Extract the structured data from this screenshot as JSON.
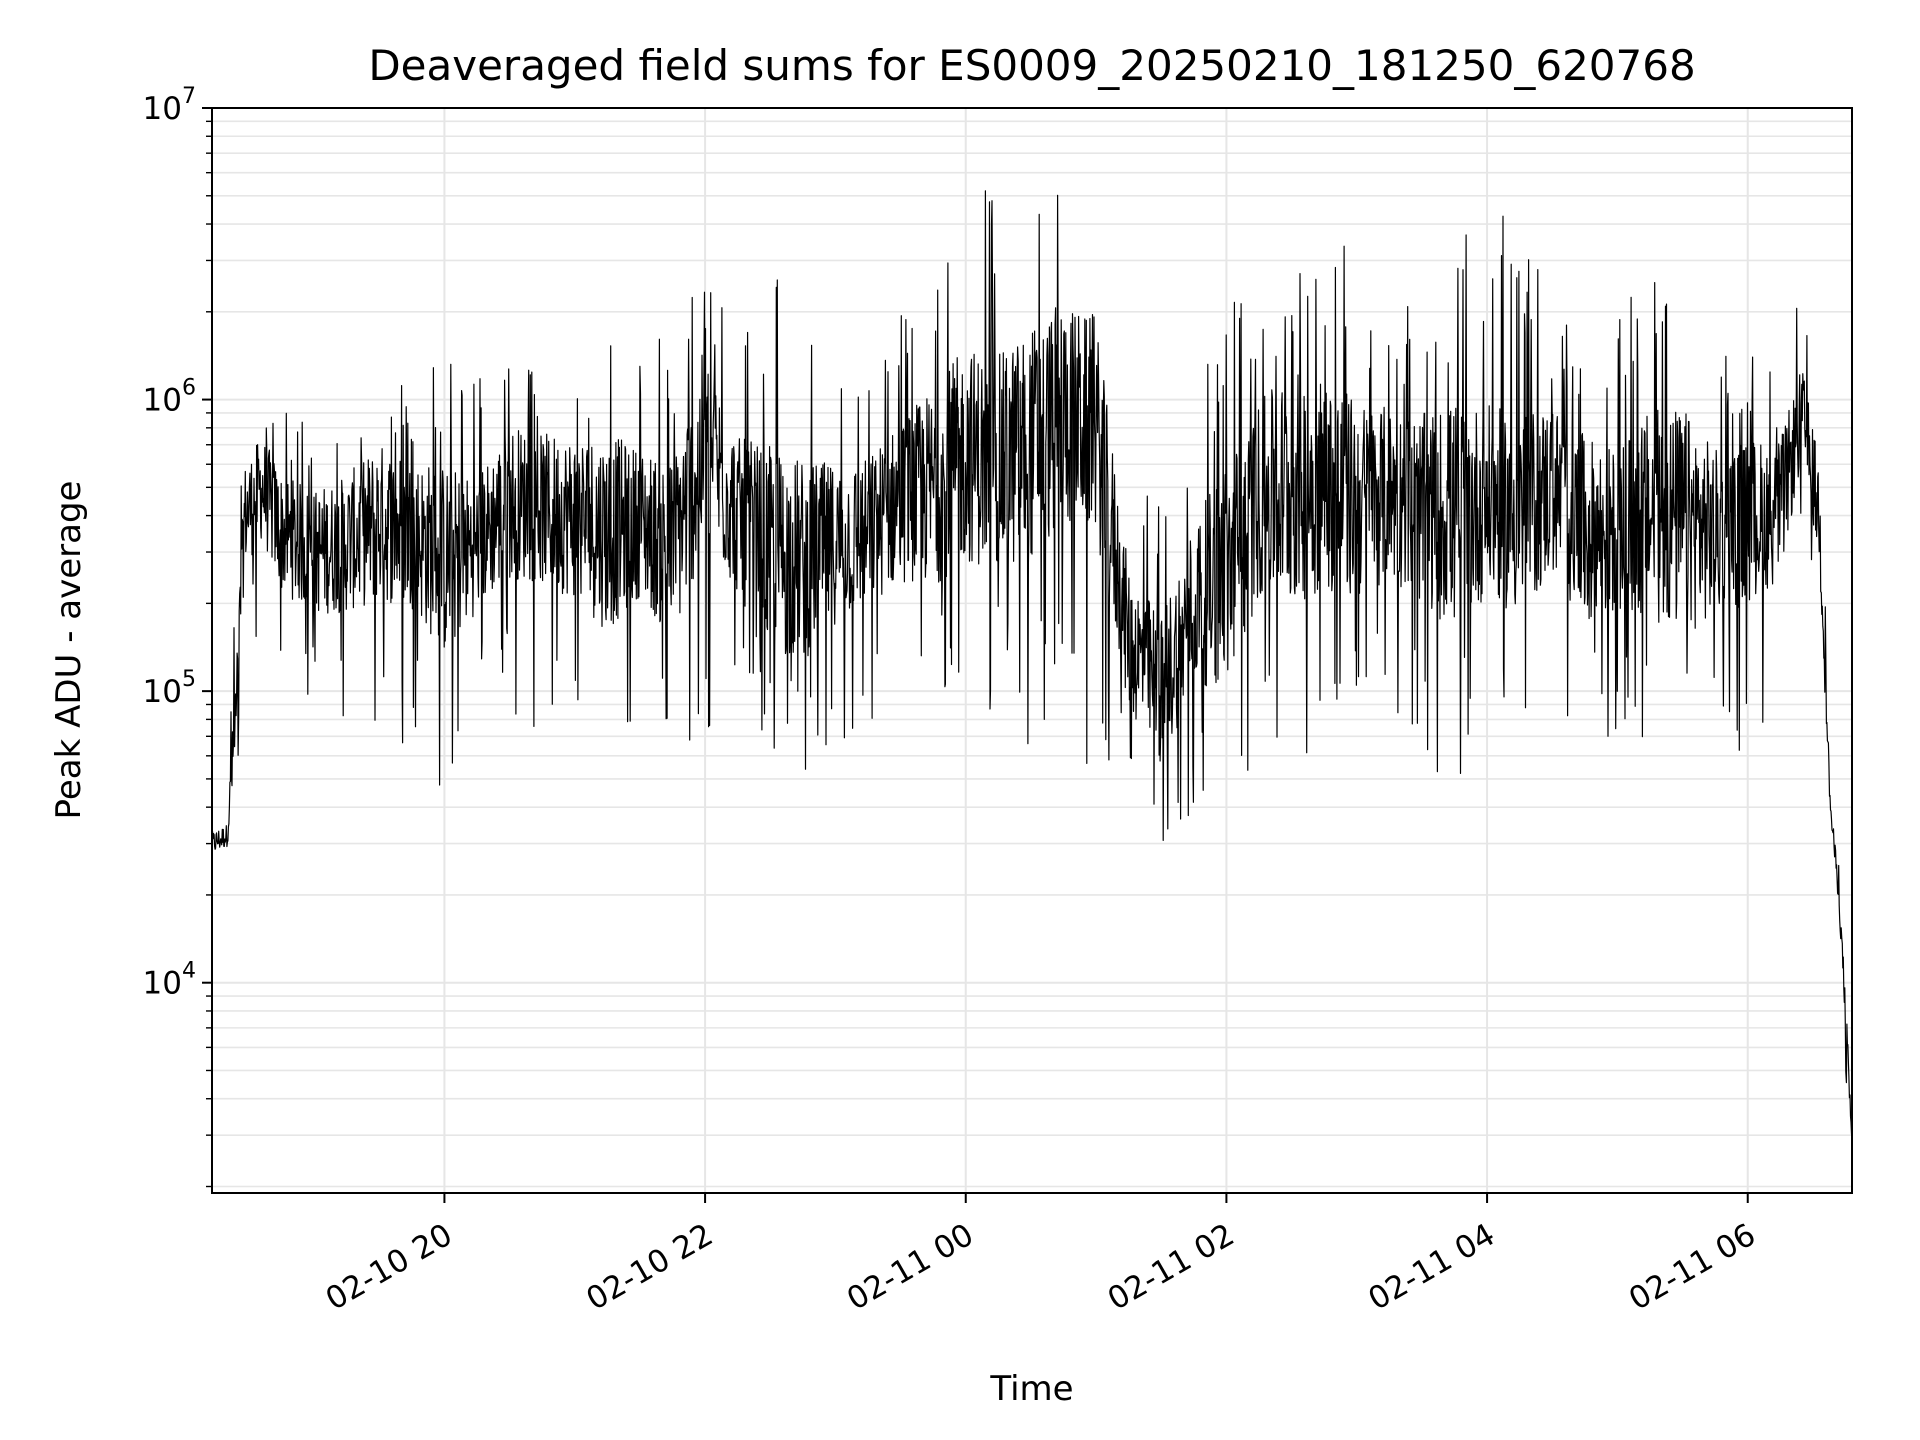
{
  "chart_data": {
    "type": "line",
    "title": "Deaveraged field sums for ES0009_20250210_181250_620768",
    "xlabel": "Time",
    "ylabel": "Peak ADU - average",
    "yscale": "log",
    "ylim": [
      1900,
      10000000
    ],
    "xlim": [
      "2025-02-10 18:13",
      "2025-02-11 06:48"
    ],
    "x_ticks": [
      {
        "t": "2025-02-10 20:00",
        "label": "02-10 20"
      },
      {
        "t": "2025-02-10 22:00",
        "label": "02-10 22"
      },
      {
        "t": "2025-02-11 00:00",
        "label": "02-11 00"
      },
      {
        "t": "2025-02-11 02:00",
        "label": "02-11 02"
      },
      {
        "t": "2025-02-11 04:00",
        "label": "02-11 04"
      },
      {
        "t": "2025-02-11 06:00",
        "label": "02-11 06"
      }
    ],
    "y_ticks": [
      {
        "value": 10000,
        "base": "10",
        "exp": "4"
      },
      {
        "value": 100000,
        "base": "10",
        "exp": "5"
      },
      {
        "value": 1000000,
        "base": "10",
        "exp": "6"
      },
      {
        "value": 10000000,
        "base": "10",
        "exp": "7"
      }
    ],
    "grid": true,
    "line_color": "#000000",
    "grid_color": "#e6e6e6",
    "series": [
      {
        "x": [
          "2025-02-10 18:13",
          "2025-02-10 18:20",
          "2025-02-10 18:24",
          "2025-02-10 18:28",
          "2025-02-10 18:36",
          "2025-02-10 18:45",
          "2025-02-10 19:00",
          "2025-02-10 19:15",
          "2025-02-10 19:30",
          "2025-02-10 19:45",
          "2025-02-10 20:00",
          "2025-02-10 20:15",
          "2025-02-10 20:30",
          "2025-02-10 20:45",
          "2025-02-10 21:00",
          "2025-02-10 21:15",
          "2025-02-10 21:30",
          "2025-02-10 21:45",
          "2025-02-10 22:00",
          "2025-02-10 22:15",
          "2025-02-10 22:30",
          "2025-02-10 22:45",
          "2025-02-10 23:00",
          "2025-02-10 23:15",
          "2025-02-10 23:30",
          "2025-02-10 23:45",
          "2025-02-11 00:00",
          "2025-02-11 00:15",
          "2025-02-11 00:30",
          "2025-02-11 00:45",
          "2025-02-11 01:00",
          "2025-02-11 01:15",
          "2025-02-11 01:30",
          "2025-02-11 01:45",
          "2025-02-11 02:00",
          "2025-02-11 02:15",
          "2025-02-11 02:30",
          "2025-02-11 02:45",
          "2025-02-11 03:00",
          "2025-02-11 03:15",
          "2025-02-11 03:30",
          "2025-02-11 03:45",
          "2025-02-11 04:00",
          "2025-02-11 04:15",
          "2025-02-11 04:30",
          "2025-02-11 04:45",
          "2025-02-11 05:00",
          "2025-02-11 05:15",
          "2025-02-11 05:30",
          "2025-02-11 05:45",
          "2025-02-11 06:00",
          "2025-02-11 06:15",
          "2025-02-11 06:25",
          "2025-02-11 06:33",
          "2025-02-11 06:38",
          "2025-02-11 06:42",
          "2025-02-11 06:45",
          "2025-02-11 06:48"
        ],
        "y_median": [
          30000,
          32000,
          80000,
          400000,
          500000,
          350000,
          300000,
          320000,
          380000,
          350000,
          280000,
          320000,
          450000,
          420000,
          400000,
          350000,
          380000,
          300000,
          700000,
          400000,
          300000,
          280000,
          320000,
          350000,
          450000,
          500000,
          650000,
          600000,
          700000,
          900000,
          800000,
          150000,
          100000,
          200000,
          250000,
          450000,
          500000,
          520000,
          450000,
          480000,
          420000,
          400000,
          450000,
          400000,
          500000,
          350000,
          350000,
          400000,
          380000,
          350000,
          380000,
          420000,
          900000,
          400000,
          40000,
          20000,
          8000,
          2800
        ],
        "y_high": [
          40000,
          42000,
          300000,
          1300000,
          1000000,
          900000,
          900000,
          1000000,
          1100000,
          1200000,
          1700000,
          1200000,
          1600000,
          1300000,
          1500000,
          1900000,
          1400000,
          1800000,
          3000000,
          2500000,
          3500000,
          2300000,
          1200000,
          1100000,
          2300000,
          3800000,
          5900000,
          5500000,
          6000000,
          7000000,
          2700000,
          600000,
          600000,
          800000,
          3300000,
          2700000,
          2400000,
          5000000,
          3000000,
          2200000,
          2600000,
          3500000,
          4000000,
          4700000,
          2000000,
          2500000,
          1800000,
          3300000,
          4300000,
          1500000,
          1500000,
          1200000,
          2500000,
          1500000,
          45000,
          25000,
          10000,
          3500
        ],
        "y_low": [
          25000,
          27000,
          40000,
          180000,
          130000,
          90000,
          80000,
          70000,
          50000,
          65000,
          40000,
          90000,
          80000,
          70000,
          60000,
          40000,
          80000,
          50000,
          60000,
          120000,
          60000,
          45000,
          55000,
          60000,
          100000,
          80000,
          90000,
          80000,
          60000,
          90000,
          45000,
          40000,
          30000,
          35000,
          40000,
          60000,
          25000,
          70000,
          60000,
          80000,
          65000,
          40000,
          100000,
          90000,
          70000,
          60000,
          70000,
          55000,
          50000,
          60000,
          60000,
          80000,
          400000,
          200000,
          30000,
          15000,
          5000,
          2000
        ]
      }
    ]
  }
}
